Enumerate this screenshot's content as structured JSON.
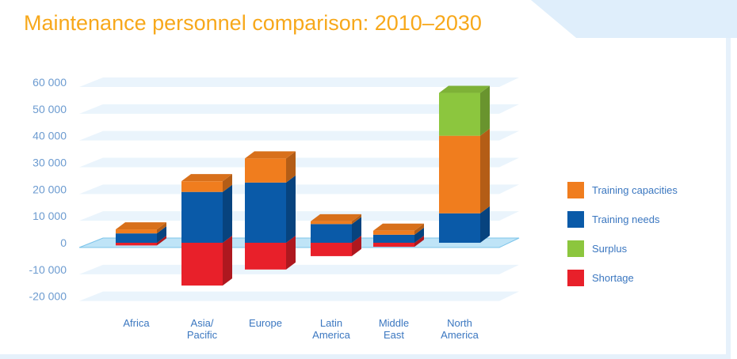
{
  "title": "Maintenance personnel comparison: 2010–2030",
  "chart_data": {
    "type": "bar",
    "stacked": true,
    "title": "Maintenance personnel comparison: 2010–2030",
    "categories": [
      "Africa",
      "Asia/ Pacific",
      "Europe",
      "Latin America",
      "Middle East",
      "North America"
    ],
    "category_lines": [
      [
        "Africa"
      ],
      [
        "Asia/",
        "Pacific"
      ],
      [
        "Europe"
      ],
      [
        "Latin",
        "America"
      ],
      [
        "Middle",
        "East"
      ],
      [
        "North",
        "America"
      ]
    ],
    "yticks": [
      "60 000",
      "50 000",
      "40 000",
      "30 000",
      "20 000",
      "10 000",
      "0",
      "-10 000",
      "-20 000"
    ],
    "ytick_values": [
      60000,
      50000,
      40000,
      30000,
      20000,
      10000,
      0,
      -10000,
      -20000
    ],
    "ylim": [
      -20000,
      60000
    ],
    "grid": true,
    "legend_position": "right",
    "series": [
      {
        "name": "Training needs",
        "color": "#0a5aa8",
        "values": [
          3500,
          19000,
          22500,
          7000,
          3000,
          11000
        ]
      },
      {
        "name": "Training capacities",
        "color": "#f07d1e",
        "values": [
          1500,
          4000,
          9000,
          1000,
          1500,
          29000
        ]
      },
      {
        "name": "Surplus",
        "color": "#8cc63e",
        "values": [
          0,
          0,
          0,
          0,
          0,
          16000
        ]
      },
      {
        "name": "Shortage",
        "color": "#e8202a",
        "values": [
          -1000,
          -16000,
          -10000,
          -5000,
          -1500,
          0
        ]
      }
    ],
    "legend_order": [
      "Training capacities",
      "Training needs",
      "Surplus",
      "Shortage"
    ]
  }
}
